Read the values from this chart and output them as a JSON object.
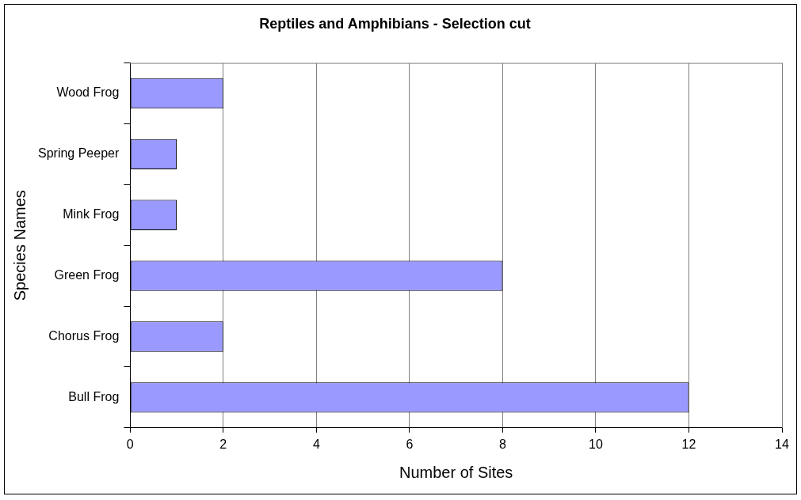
{
  "chart_data": {
    "type": "bar",
    "orientation": "horizontal",
    "title": "Reptiles and Amphibians - Selection cut",
    "xlabel": "Number of Sites",
    "ylabel": "Species Names",
    "categories": [
      "Wood Frog",
      "Spring Peeper",
      "Mink Frog",
      "Green Frog",
      "Chorus Frog",
      "Bull Frog"
    ],
    "values": [
      2,
      1,
      1,
      8,
      2,
      12
    ],
    "color": "#9999ff",
    "xlim": [
      0,
      14
    ],
    "xticks": [
      0,
      2,
      4,
      6,
      8,
      10,
      12,
      14
    ],
    "grid": "x",
    "legend": false
  }
}
